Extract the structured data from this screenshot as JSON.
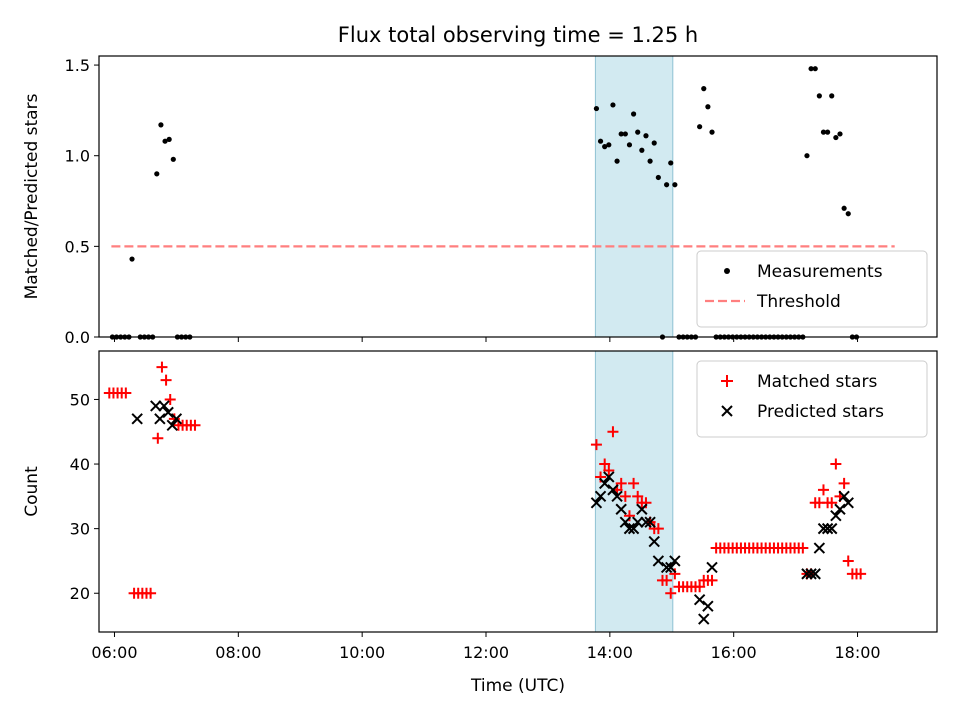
{
  "title": "Flux total observing time = 1.25 h",
  "shade_color": "#add8e6",
  "chart_data": [
    {
      "type": "scatter",
      "ylabel": "Matched/Predicted stars",
      "ylim": [
        0,
        1.55
      ],
      "yticks": [
        0.0,
        0.5,
        1.0,
        1.5
      ],
      "ytick_labels": [
        "0.0",
        "0.5",
        "1.0",
        "1.5"
      ],
      "xlim": [
        "05:45",
        "19:17"
      ],
      "shaded_span": [
        "13:46",
        "15:01"
      ],
      "legend_position": "lower-right",
      "threshold": {
        "name": "Threshold",
        "value": 0.5,
        "x_range": [
          "05:57",
          "18:36"
        ],
        "color": "#ff7f7f",
        "style": "dashed"
      },
      "series": [
        {
          "name": "Measurements",
          "marker": "dot",
          "color": "#000000",
          "points": [
            [
              "05:58",
              0
            ],
            [
              "06:02",
              0
            ],
            [
              "06:06",
              0
            ],
            [
              "06:10",
              0
            ],
            [
              "06:14",
              0
            ],
            [
              "06:17",
              0.43
            ],
            [
              "06:25",
              0
            ],
            [
              "06:29",
              0
            ],
            [
              "06:33",
              0
            ],
            [
              "06:37",
              0
            ],
            [
              "06:41",
              0.9
            ],
            [
              "06:45",
              1.17
            ],
            [
              "06:49",
              1.08
            ],
            [
              "06:53",
              1.09
            ],
            [
              "06:57",
              0.98
            ],
            [
              "07:01",
              0
            ],
            [
              "07:05",
              0
            ],
            [
              "07:09",
              0
            ],
            [
              "07:13",
              0
            ],
            [
              "13:47",
              1.26
            ],
            [
              "13:51",
              1.08
            ],
            [
              "13:55",
              1.05
            ],
            [
              "13:59",
              1.06
            ],
            [
              "14:03",
              1.28
            ],
            [
              "14:07",
              0.97
            ],
            [
              "14:11",
              1.12
            ],
            [
              "14:15",
              1.12
            ],
            [
              "14:19",
              1.06
            ],
            [
              "14:23",
              1.23
            ],
            [
              "14:27",
              1.13
            ],
            [
              "14:31",
              1.03
            ],
            [
              "14:35",
              1.11
            ],
            [
              "14:39",
              0.97
            ],
            [
              "14:43",
              1.07
            ],
            [
              "14:47",
              0.88
            ],
            [
              "14:51",
              0
            ],
            [
              "14:55",
              0.84
            ],
            [
              "14:59",
              0.96
            ],
            [
              "15:03",
              0.84
            ],
            [
              "15:07",
              0
            ],
            [
              "15:11",
              0
            ],
            [
              "15:15",
              0
            ],
            [
              "15:19",
              0
            ],
            [
              "15:23",
              0
            ],
            [
              "15:27",
              1.16
            ],
            [
              "15:31",
              1.37
            ],
            [
              "15:35",
              1.27
            ],
            [
              "15:39",
              1.13
            ],
            [
              "15:43",
              0
            ],
            [
              "15:47",
              0
            ],
            [
              "15:51",
              0
            ],
            [
              "15:55",
              0
            ],
            [
              "15:59",
              0
            ],
            [
              "16:03",
              0
            ],
            [
              "16:07",
              0
            ],
            [
              "16:11",
              0
            ],
            [
              "16:15",
              0
            ],
            [
              "16:19",
              0
            ],
            [
              "16:23",
              0
            ],
            [
              "16:27",
              0
            ],
            [
              "16:31",
              0
            ],
            [
              "16:35",
              0
            ],
            [
              "16:39",
              0
            ],
            [
              "16:43",
              0
            ],
            [
              "16:47",
              0
            ],
            [
              "16:51",
              0
            ],
            [
              "16:55",
              0
            ],
            [
              "16:59",
              0
            ],
            [
              "17:03",
              0
            ],
            [
              "17:07",
              0
            ],
            [
              "17:11",
              1.0
            ],
            [
              "17:15",
              1.48
            ],
            [
              "17:19",
              1.48
            ],
            [
              "17:23",
              1.33
            ],
            [
              "17:27",
              1.13
            ],
            [
              "17:31",
              1.13
            ],
            [
              "17:35",
              1.33
            ],
            [
              "17:39",
              1.1
            ],
            [
              "17:43",
              1.12
            ],
            [
              "17:47",
              0.71
            ],
            [
              "17:51",
              0.68
            ],
            [
              "17:55",
              0
            ],
            [
              "17:59",
              0
            ]
          ]
        }
      ]
    },
    {
      "type": "scatter",
      "xlabel": "Time (UTC)",
      "ylabel": "Count",
      "ylim": [
        14,
        57.5
      ],
      "yticks": [
        20,
        30,
        40,
        50
      ],
      "ytick_labels": [
        "20",
        "30",
        "40",
        "50"
      ],
      "xlim": [
        "05:45",
        "19:17"
      ],
      "xticks": [
        "06:00",
        "08:00",
        "10:00",
        "12:00",
        "14:00",
        "16:00",
        "18:00"
      ],
      "xtick_labels": [
        "06:00",
        "08:00",
        "10:00",
        "12:00",
        "14:00",
        "16:00",
        "18:00"
      ],
      "shaded_span": [
        "13:46",
        "15:01"
      ],
      "legend_position": "upper-right",
      "series": [
        {
          "name": "Matched stars",
          "marker": "plus",
          "color": "#ff0000",
          "points": [
            [
              "05:55",
              51
            ],
            [
              "05:59",
              51
            ],
            [
              "06:03",
              51
            ],
            [
              "06:07",
              51
            ],
            [
              "06:11",
              51
            ],
            [
              "06:19",
              20
            ],
            [
              "06:23",
              20
            ],
            [
              "06:27",
              20
            ],
            [
              "06:31",
              20
            ],
            [
              "06:35",
              20
            ],
            [
              "06:42",
              44
            ],
            [
              "06:46",
              55
            ],
            [
              "06:50",
              53
            ],
            [
              "06:54",
              50
            ],
            [
              "06:58",
              47
            ],
            [
              "07:02",
              46
            ],
            [
              "07:06",
              46
            ],
            [
              "07:10",
              46
            ],
            [
              "07:14",
              46
            ],
            [
              "07:18",
              46
            ],
            [
              "13:47",
              43
            ],
            [
              "13:51",
              38
            ],
            [
              "13:55",
              40
            ],
            [
              "13:59",
              39
            ],
            [
              "14:03",
              45
            ],
            [
              "14:07",
              36
            ],
            [
              "14:11",
              37
            ],
            [
              "14:15",
              35
            ],
            [
              "14:19",
              32
            ],
            [
              "14:23",
              37
            ],
            [
              "14:27",
              35
            ],
            [
              "14:31",
              34
            ],
            [
              "14:35",
              34
            ],
            [
              "14:39",
              31
            ],
            [
              "14:43",
              30
            ],
            [
              "14:47",
              30
            ],
            [
              "14:51",
              22
            ],
            [
              "14:55",
              22
            ],
            [
              "14:59",
              20
            ],
            [
              "15:03",
              23
            ],
            [
              "15:07",
              21
            ],
            [
              "15:11",
              21
            ],
            [
              "15:15",
              21
            ],
            [
              "15:19",
              21
            ],
            [
              "15:23",
              21
            ],
            [
              "15:27",
              21
            ],
            [
              "15:31",
              22
            ],
            [
              "15:35",
              22
            ],
            [
              "15:39",
              22
            ],
            [
              "15:43",
              27
            ],
            [
              "15:47",
              27
            ],
            [
              "15:51",
              27
            ],
            [
              "15:55",
              27
            ],
            [
              "15:59",
              27
            ],
            [
              "16:03",
              27
            ],
            [
              "16:07",
              27
            ],
            [
              "16:11",
              27
            ],
            [
              "16:15",
              27
            ],
            [
              "16:19",
              27
            ],
            [
              "16:23",
              27
            ],
            [
              "16:27",
              27
            ],
            [
              "16:31",
              27
            ],
            [
              "16:35",
              27
            ],
            [
              "16:39",
              27
            ],
            [
              "16:43",
              27
            ],
            [
              "16:47",
              27
            ],
            [
              "16:51",
              27
            ],
            [
              "16:55",
              27
            ],
            [
              "16:59",
              27
            ],
            [
              "17:03",
              27
            ],
            [
              "17:07",
              27
            ],
            [
              "17:11",
              23
            ],
            [
              "17:15",
              23
            ],
            [
              "17:19",
              34
            ],
            [
              "17:23",
              34
            ],
            [
              "17:27",
              36
            ],
            [
              "17:31",
              34
            ],
            [
              "17:35",
              34
            ],
            [
              "17:39",
              40
            ],
            [
              "17:43",
              35
            ],
            [
              "17:47",
              37
            ],
            [
              "17:51",
              25
            ],
            [
              "17:55",
              23
            ],
            [
              "17:59",
              23
            ],
            [
              "18:03",
              23
            ]
          ]
        },
        {
          "name": "Predicted stars",
          "marker": "x",
          "color": "#000000",
          "points": [
            [
              "06:22",
              47
            ],
            [
              "06:40",
              49
            ],
            [
              "06:44",
              47
            ],
            [
              "06:48",
              49
            ],
            [
              "06:52",
              48
            ],
            [
              "06:56",
              46
            ],
            [
              "07:00",
              47
            ],
            [
              "13:47",
              34
            ],
            [
              "13:51",
              35
            ],
            [
              "13:55",
              37
            ],
            [
              "13:59",
              38
            ],
            [
              "14:03",
              36
            ],
            [
              "14:07",
              35
            ],
            [
              "14:11",
              33
            ],
            [
              "14:15",
              31
            ],
            [
              "14:19",
              30
            ],
            [
              "14:23",
              30
            ],
            [
              "14:27",
              31
            ],
            [
              "14:31",
              33
            ],
            [
              "14:35",
              31
            ],
            [
              "14:39",
              31
            ],
            [
              "14:43",
              28
            ],
            [
              "14:47",
              25
            ],
            [
              "14:55",
              24
            ],
            [
              "14:59",
              24
            ],
            [
              "15:03",
              25
            ],
            [
              "15:27",
              19
            ],
            [
              "15:31",
              16
            ],
            [
              "15:35",
              18
            ],
            [
              "15:39",
              24
            ],
            [
              "17:11",
              23
            ],
            [
              "17:15",
              23
            ],
            [
              "17:19",
              23
            ],
            [
              "17:23",
              27
            ],
            [
              "17:27",
              30
            ],
            [
              "17:31",
              30
            ],
            [
              "17:35",
              30
            ],
            [
              "17:39",
              32
            ],
            [
              "17:43",
              33
            ],
            [
              "17:47",
              35
            ],
            [
              "17:51",
              34
            ]
          ]
        }
      ]
    }
  ]
}
